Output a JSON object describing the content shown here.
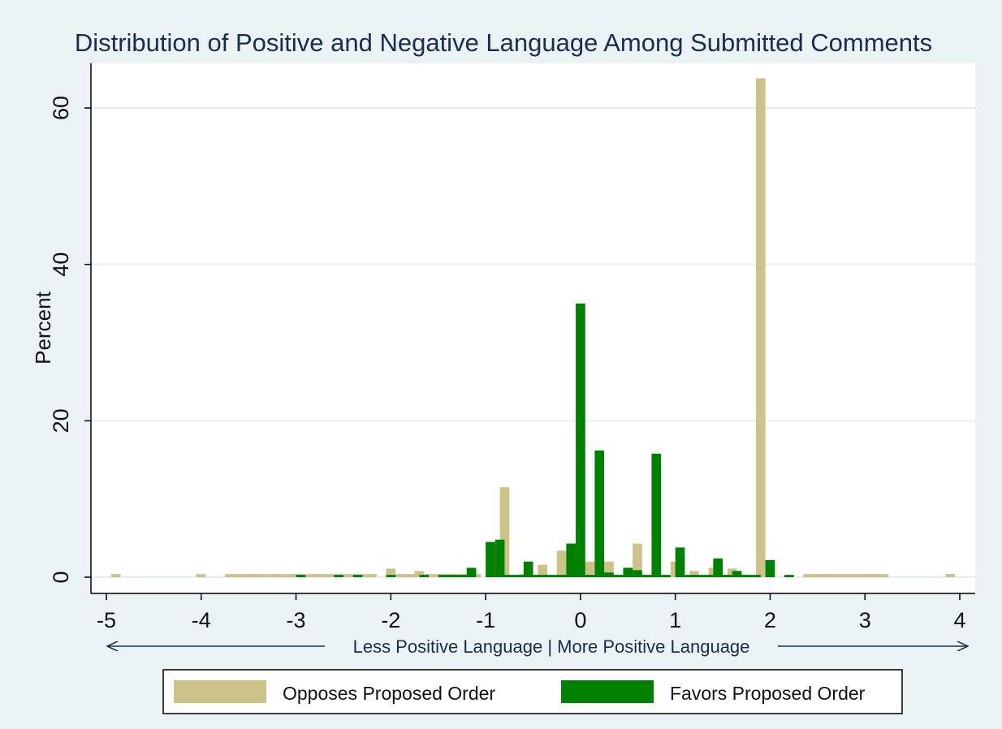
{
  "chart_data": {
    "type": "bar",
    "title": "Distribution of Positive and Negative Language Among Submitted Comments",
    "ylabel": "Percent",
    "xlabel": "",
    "annotation": "Less Positive Language | More Positive Language",
    "xlim": [
      -5.15,
      4.15
    ],
    "ylim": [
      -1.5,
      66
    ],
    "xticks": [
      -5,
      -4,
      -3,
      -2,
      -1,
      0,
      1,
      2,
      3,
      4
    ],
    "yticks": [
      0,
      20,
      40,
      60
    ],
    "grid": true,
    "legend_position": "bottom",
    "bar_width": 0.1,
    "series": [
      {
        "name": "Opposes Proposed Order",
        "color": "#cdc38a",
        "points": [
          {
            "x": -4.9,
            "y": 0.4
          },
          {
            "x": -4.0,
            "y": 0.4
          },
          {
            "x": -3.7,
            "y": 0.4
          },
          {
            "x": -3.6,
            "y": 0.4
          },
          {
            "x": -3.5,
            "y": 0.4
          },
          {
            "x": -3.4,
            "y": 0.4
          },
          {
            "x": -3.3,
            "y": 0.4
          },
          {
            "x": -3.2,
            "y": 0.4
          },
          {
            "x": -3.1,
            "y": 0.4
          },
          {
            "x": -3.0,
            "y": 0.4
          },
          {
            "x": -2.9,
            "y": 0.4
          },
          {
            "x": -2.8,
            "y": 0.4
          },
          {
            "x": -2.7,
            "y": 0.4
          },
          {
            "x": -2.6,
            "y": 0.4
          },
          {
            "x": -2.5,
            "y": 0.4
          },
          {
            "x": -2.4,
            "y": 0.4
          },
          {
            "x": -2.3,
            "y": 0.4
          },
          {
            "x": -2.2,
            "y": 0.4
          },
          {
            "x": -2.0,
            "y": 1.1
          },
          {
            "x": -1.9,
            "y": 0.4
          },
          {
            "x": -1.8,
            "y": 0.4
          },
          {
            "x": -1.7,
            "y": 0.8
          },
          {
            "x": -1.6,
            "y": 0.4
          },
          {
            "x": -1.5,
            "y": 0.4
          },
          {
            "x": -1.4,
            "y": 0.4
          },
          {
            "x": -1.3,
            "y": 0.4
          },
          {
            "x": -1.2,
            "y": 0.4
          },
          {
            "x": -1.1,
            "y": 0.4
          },
          {
            "x": -0.9,
            "y": 0.4
          },
          {
            "x": -0.8,
            "y": 11.5
          },
          {
            "x": -0.6,
            "y": 0.4
          },
          {
            "x": -0.4,
            "y": 1.6
          },
          {
            "x": -0.2,
            "y": 3.4
          },
          {
            "x": 0.1,
            "y": 2.0
          },
          {
            "x": 0.3,
            "y": 2.0
          },
          {
            "x": 0.6,
            "y": 4.3
          },
          {
            "x": 1.0,
            "y": 2.0
          },
          {
            "x": 1.2,
            "y": 0.8
          },
          {
            "x": 1.4,
            "y": 1.2
          },
          {
            "x": 1.6,
            "y": 1.1
          },
          {
            "x": 1.9,
            "y": 63.8
          },
          {
            "x": 2.4,
            "y": 0.4
          },
          {
            "x": 2.5,
            "y": 0.4
          },
          {
            "x": 2.6,
            "y": 0.4
          },
          {
            "x": 2.7,
            "y": 0.4
          },
          {
            "x": 2.8,
            "y": 0.4
          },
          {
            "x": 2.9,
            "y": 0.4
          },
          {
            "x": 3.0,
            "y": 0.4
          },
          {
            "x": 3.1,
            "y": 0.4
          },
          {
            "x": 3.2,
            "y": 0.4
          },
          {
            "x": 3.9,
            "y": 0.4
          }
        ]
      },
      {
        "name": "Favors Proposed Order",
        "color": "#008000",
        "points": [
          {
            "x": -2.95,
            "y": 0.3
          },
          {
            "x": -2.55,
            "y": 0.3
          },
          {
            "x": -2.35,
            "y": 0.3
          },
          {
            "x": -2.0,
            "y": 0.3
          },
          {
            "x": -1.65,
            "y": 0.3
          },
          {
            "x": -1.45,
            "y": 0.3
          },
          {
            "x": -1.35,
            "y": 0.3
          },
          {
            "x": -1.25,
            "y": 0.3
          },
          {
            "x": -1.15,
            "y": 1.2
          },
          {
            "x": -0.95,
            "y": 4.5
          },
          {
            "x": -0.85,
            "y": 4.8
          },
          {
            "x": -0.75,
            "y": 0.3
          },
          {
            "x": -0.65,
            "y": 0.3
          },
          {
            "x": -0.55,
            "y": 2.0
          },
          {
            "x": -0.45,
            "y": 0.3
          },
          {
            "x": -0.35,
            "y": 0.3
          },
          {
            "x": -0.25,
            "y": 0.3
          },
          {
            "x": -0.15,
            "y": 0.3
          },
          {
            "x": -0.1,
            "y": 4.3
          },
          {
            "x": 0.0,
            "y": 35.0
          },
          {
            "x": 0.1,
            "y": 0.3
          },
          {
            "x": 0.2,
            "y": 16.2
          },
          {
            "x": 0.3,
            "y": 0.6
          },
          {
            "x": 0.4,
            "y": 0.3
          },
          {
            "x": 0.5,
            "y": 1.2
          },
          {
            "x": 0.6,
            "y": 0.9
          },
          {
            "x": 0.7,
            "y": 0.3
          },
          {
            "x": 0.8,
            "y": 15.8
          },
          {
            "x": 0.9,
            "y": 0.3
          },
          {
            "x": 1.05,
            "y": 3.8
          },
          {
            "x": 1.15,
            "y": 0.3
          },
          {
            "x": 1.25,
            "y": 0.3
          },
          {
            "x": 1.35,
            "y": 0.3
          },
          {
            "x": 1.45,
            "y": 2.4
          },
          {
            "x": 1.55,
            "y": 0.3
          },
          {
            "x": 1.65,
            "y": 0.8
          },
          {
            "x": 1.75,
            "y": 0.3
          },
          {
            "x": 1.85,
            "y": 0.3
          },
          {
            "x": 2.0,
            "y": 2.2
          },
          {
            "x": 2.2,
            "y": 0.3
          }
        ]
      }
    ]
  }
}
